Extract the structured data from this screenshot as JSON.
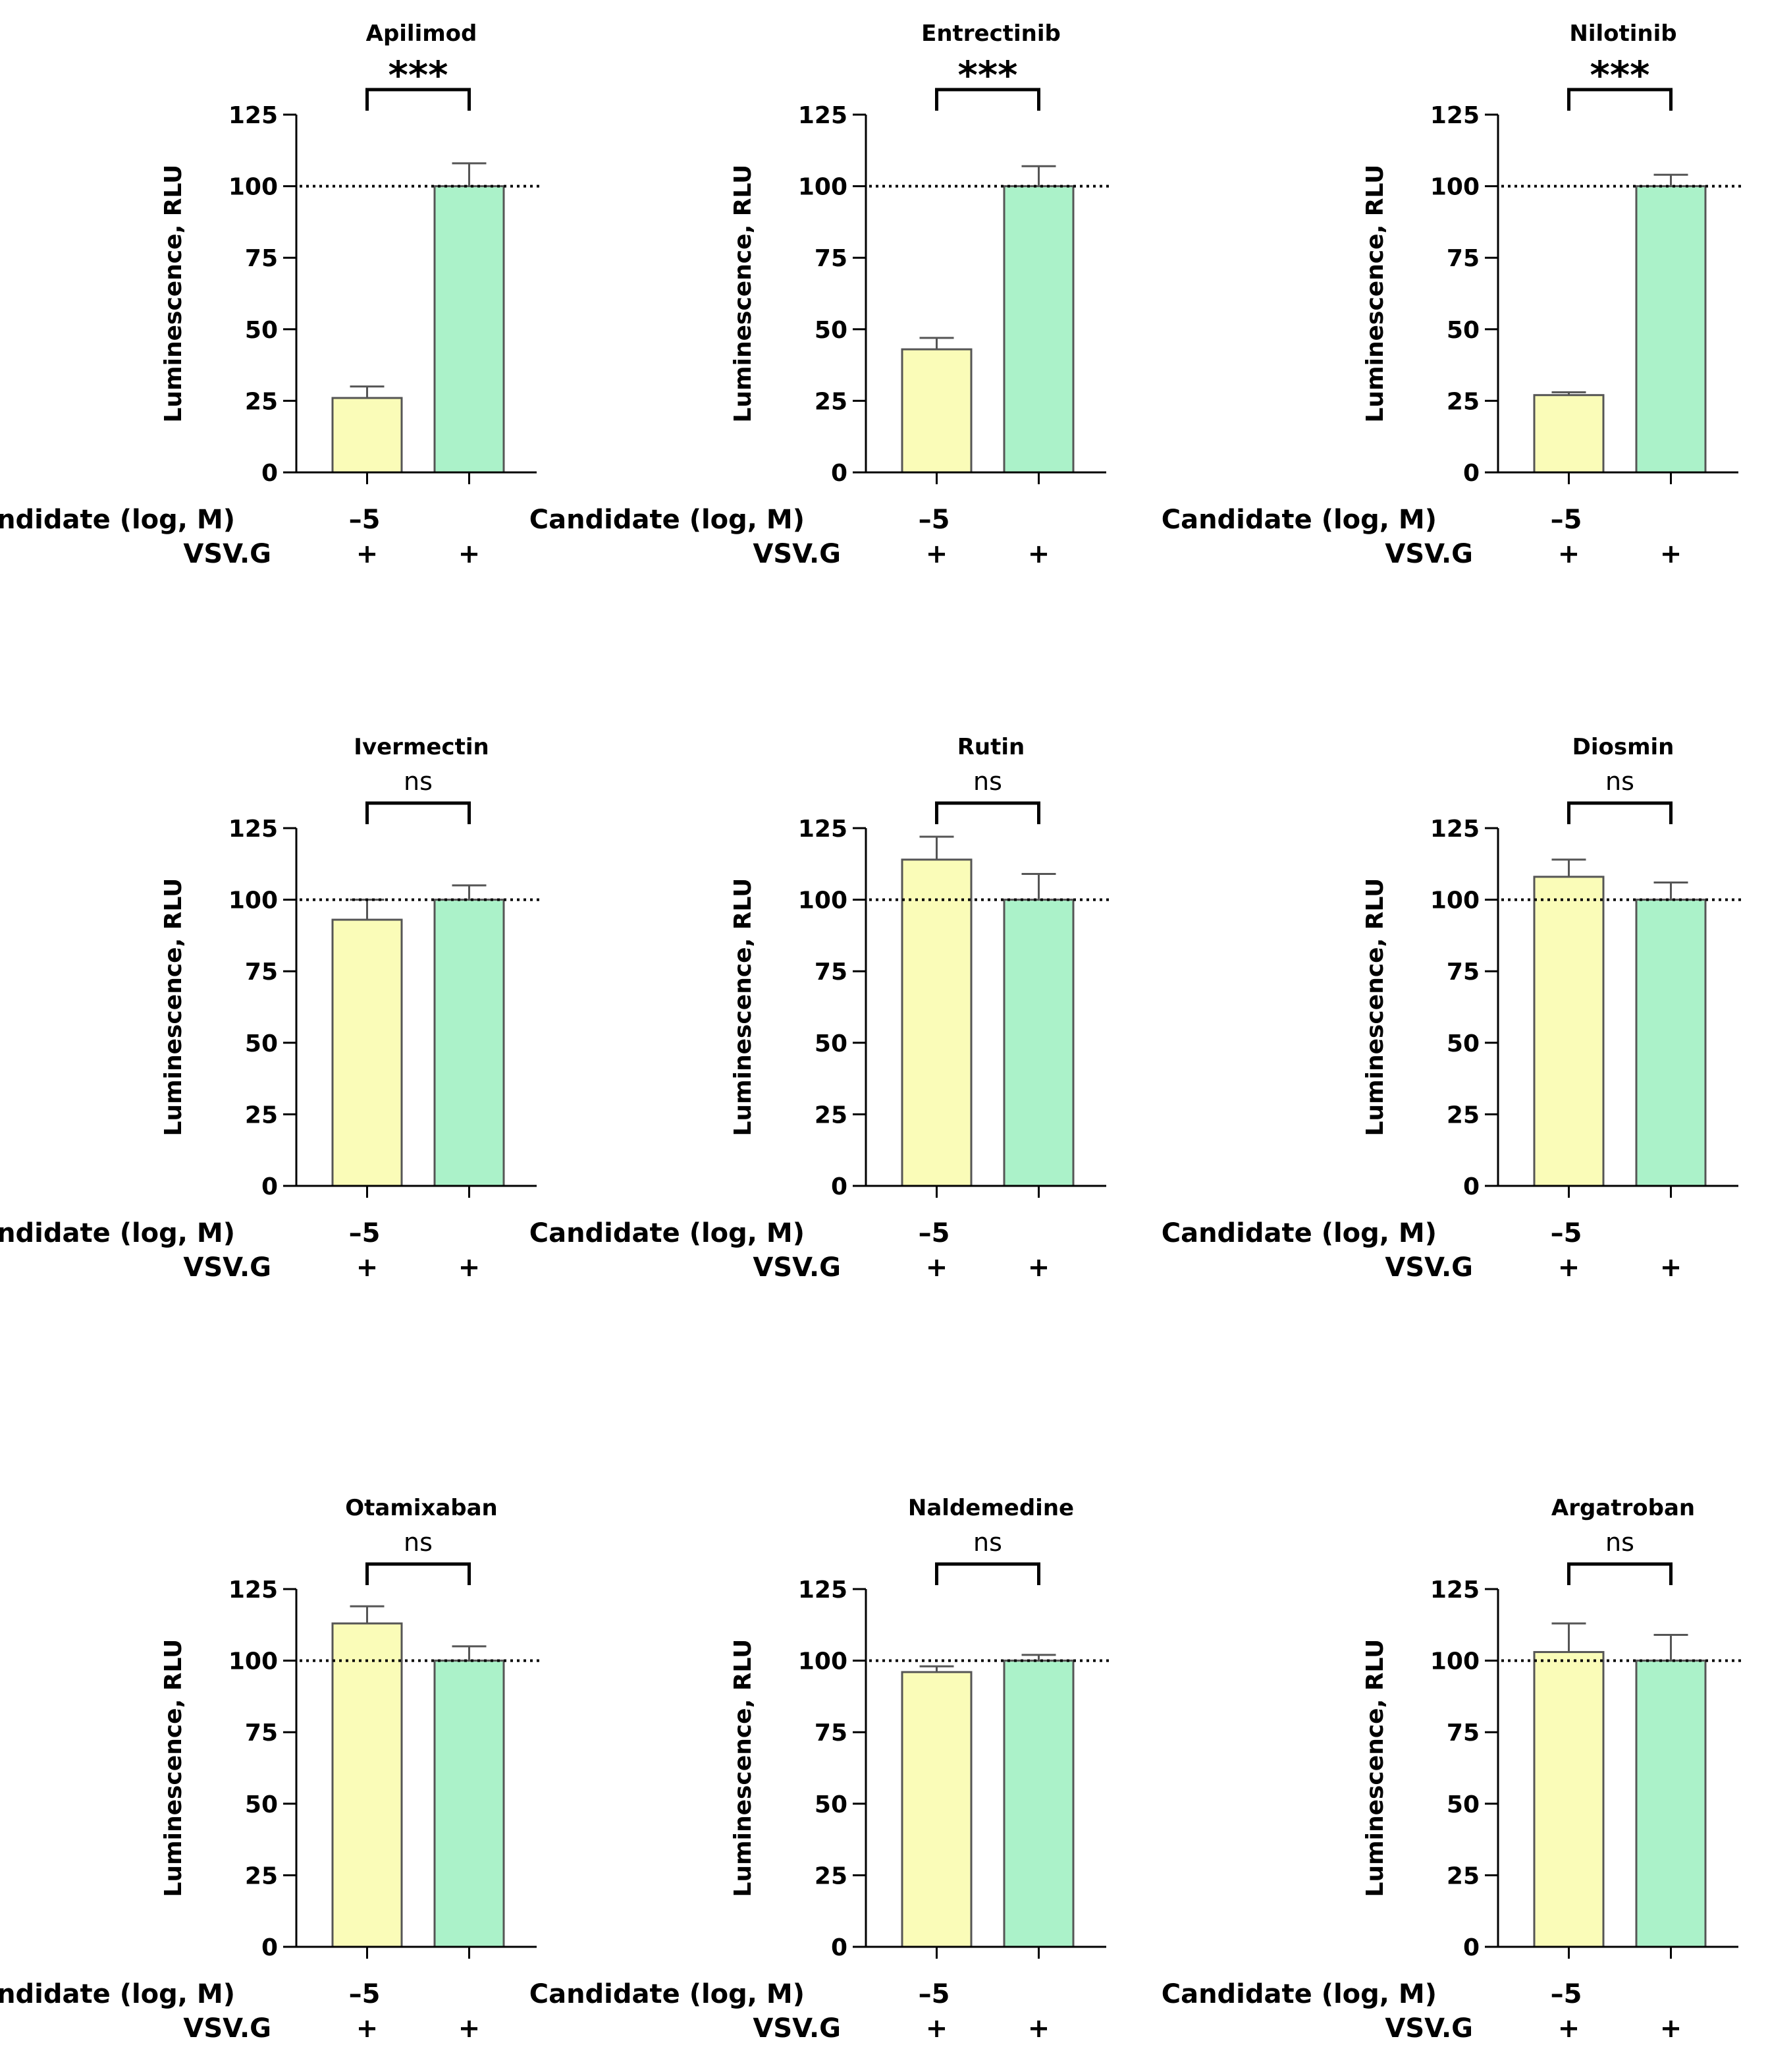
{
  "figure": {
    "ylabel": "Luminescence, RLU",
    "row_label_candidate": "Candidate (log, M)",
    "row_label_vsvg": "VSV.G",
    "candidate_dose": "–5",
    "vsvg_marker": "+",
    "yticks": [
      "0",
      "25",
      "50",
      "75",
      "100",
      "125"
    ],
    "colors": {
      "treated_bar": "#fafcb8",
      "control_bar": "#abf2c9",
      "axis": "#000000"
    }
  },
  "chart_data": [
    {
      "type": "bar",
      "title": "Apilimod",
      "categories": [
        "Candidate −5 + VSV.G",
        "VSV.G"
      ],
      "values": [
        26,
        100
      ],
      "errors": [
        4,
        8
      ],
      "significance": "***",
      "reference_line": 100,
      "ylim": [
        0,
        125
      ],
      "ylabel": "Luminescence, RLU"
    },
    {
      "type": "bar",
      "title": "Entrectinib",
      "categories": [
        "Candidate −5 + VSV.G",
        "VSV.G"
      ],
      "values": [
        43,
        100
      ],
      "errors": [
        4,
        7
      ],
      "significance": "***",
      "reference_line": 100,
      "ylim": [
        0,
        125
      ],
      "ylabel": "Luminescence, RLU"
    },
    {
      "type": "bar",
      "title": "Nilotinib",
      "categories": [
        "Candidate −5 + VSV.G",
        "VSV.G"
      ],
      "values": [
        27,
        100
      ],
      "errors": [
        1,
        4
      ],
      "significance": "***",
      "reference_line": 100,
      "ylim": [
        0,
        125
      ],
      "ylabel": "Luminescence, RLU"
    },
    {
      "type": "bar",
      "title": "Ivermectin",
      "categories": [
        "Candidate −5 + VSV.G",
        "VSV.G"
      ],
      "values": [
        93,
        100
      ],
      "errors": [
        7,
        5
      ],
      "significance": "ns",
      "reference_line": 100,
      "ylim": [
        0,
        125
      ],
      "ylabel": "Luminescence, RLU"
    },
    {
      "type": "bar",
      "title": "Rutin",
      "categories": [
        "Candidate −5 + VSV.G",
        "VSV.G"
      ],
      "values": [
        114,
        100
      ],
      "errors": [
        8,
        9
      ],
      "significance": "ns",
      "reference_line": 100,
      "ylim": [
        0,
        125
      ],
      "ylabel": "Luminescence, RLU"
    },
    {
      "type": "bar",
      "title": "Diosmin",
      "categories": [
        "Candidate −5 + VSV.G",
        "VSV.G"
      ],
      "values": [
        108,
        100
      ],
      "errors": [
        6,
        6
      ],
      "significance": "ns",
      "reference_line": 100,
      "ylim": [
        0,
        125
      ],
      "ylabel": "Luminescence, RLU"
    },
    {
      "type": "bar",
      "title": "Otamixaban",
      "categories": [
        "Candidate −5 + VSV.G",
        "VSV.G"
      ],
      "values": [
        113,
        100
      ],
      "errors": [
        6,
        5
      ],
      "significance": "ns",
      "reference_line": 100,
      "ylim": [
        0,
        125
      ],
      "ylabel": "Luminescence, RLU"
    },
    {
      "type": "bar",
      "title": "Naldemedine",
      "categories": [
        "Candidate −5 + VSV.G",
        "VSV.G"
      ],
      "values": [
        96,
        100
      ],
      "errors": [
        2,
        2
      ],
      "significance": "ns",
      "reference_line": 100,
      "ylim": [
        0,
        125
      ],
      "ylabel": "Luminescence, RLU"
    },
    {
      "type": "bar",
      "title": "Argatroban",
      "categories": [
        "Candidate −5 + VSV.G",
        "VSV.G"
      ],
      "values": [
        103,
        100
      ],
      "errors": [
        10,
        9
      ],
      "significance": "ns",
      "reference_line": 100,
      "ylim": [
        0,
        125
      ],
      "ylabel": "Luminescence, RLU"
    }
  ]
}
